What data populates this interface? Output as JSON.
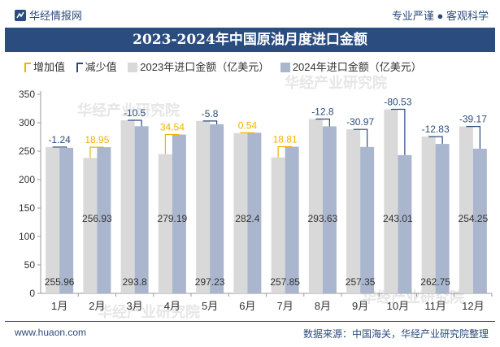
{
  "header": {
    "brand": "华经情报网",
    "tagline": "专业严谨 ● 客观科学"
  },
  "footer": {
    "website": "www.huaon.com",
    "source": "数据来源：中国海关，华经产业研究院整理"
  },
  "watermark": "华经产业研究院",
  "colors": {
    "increase": "#f2b200",
    "decrease": "#2b4c7e",
    "series2023": "#d9d9d9",
    "series2024": "#a9b6cd",
    "title_band": "#2b4c7e"
  },
  "chart_data": {
    "type": "bar",
    "title": "2023-2024年中国原油月度进口金额",
    "categories": [
      "1月",
      "2月",
      "3月",
      "4月",
      "5月",
      "6月",
      "7月",
      "8月",
      "9月",
      "10月",
      "11月",
      "12月"
    ],
    "series": [
      {
        "name": "2023年进口金额（亿美元）",
        "values": [
          257.2,
          237.98,
          304.3,
          244.65,
          303.03,
          281.86,
          239.04,
          306.43,
          288.32,
          323.54,
          275.58,
          293.42
        ]
      },
      {
        "name": "2024年进口金额（亿美元）",
        "values": [
          255.96,
          256.93,
          293.8,
          279.19,
          297.23,
          282.4,
          257.85,
          293.63,
          257.35,
          243.01,
          262.75,
          254.25
        ]
      }
    ],
    "change": {
      "legend_increase": "增加值",
      "legend_decrease": "减少值",
      "labels": [
        "-1.24",
        "18.95",
        "-10.5",
        "34.54",
        "-5.8",
        "0.54",
        "18.81",
        "-12.8",
        "-30.97",
        "-80.53",
        "-12.83",
        "-39.17"
      ],
      "values": [
        -1.24,
        18.95,
        -10.5,
        34.54,
        -5.8,
        0.54,
        18.81,
        -12.8,
        -30.97,
        -80.53,
        -12.83,
        -39.17
      ]
    },
    "value_labels_2024": [
      "255.96",
      "256.93",
      "293.8",
      "279.19",
      "297.23",
      "282.4",
      "257.85",
      "293.63",
      "257.35",
      "243.01",
      "262.75",
      "254.25"
    ],
    "y_ticks": [
      "0",
      "50",
      "100",
      "150",
      "200",
      "250",
      "300",
      "350"
    ],
    "ylim": [
      0,
      350
    ],
    "grid": false,
    "legend_position": "top"
  }
}
